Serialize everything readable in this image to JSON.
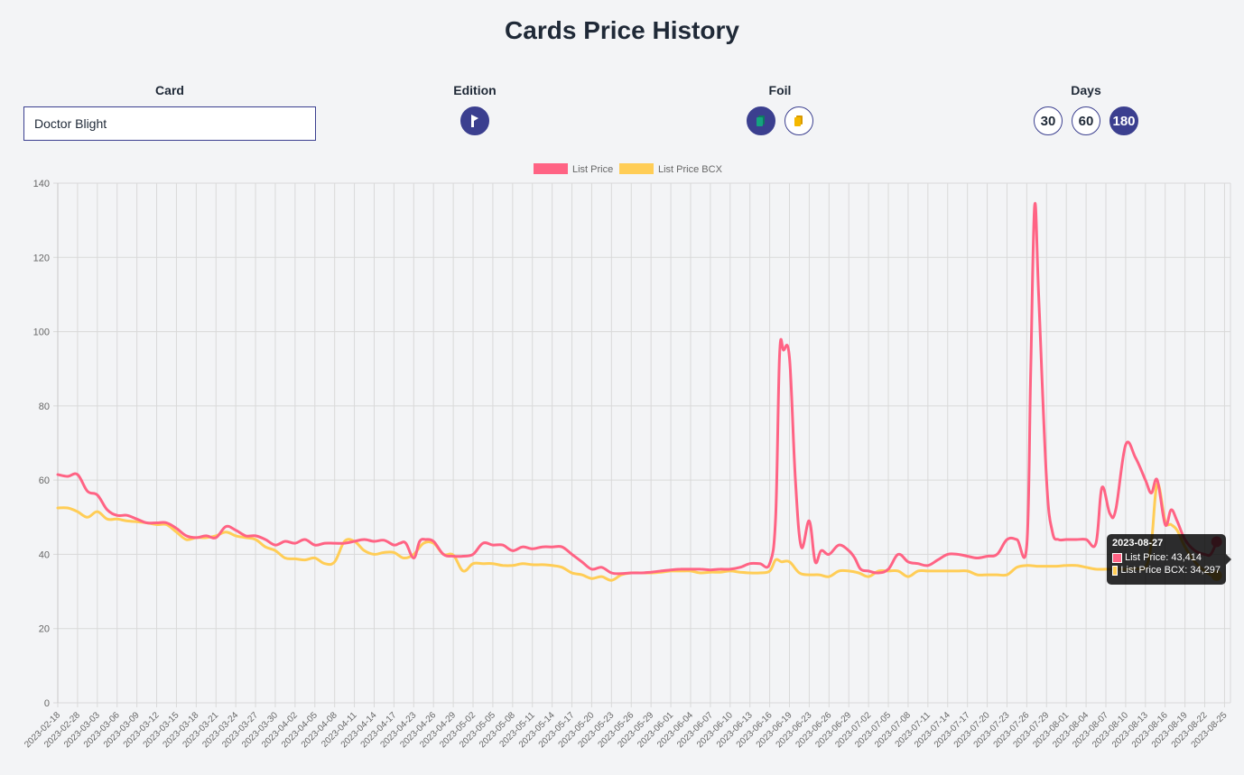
{
  "page": {
    "title": "Cards Price History"
  },
  "controls": {
    "card": {
      "label": "Card",
      "value": "Doctor Blight"
    },
    "edition": {
      "label": "Edition",
      "icon": "edition-flag-icon"
    },
    "foil": {
      "label": "Foil",
      "options": [
        {
          "icon": "regular-card-icon",
          "color": "#14a37f",
          "active": true
        },
        {
          "icon": "gold-card-icon",
          "color": "#f5b800",
          "active": false
        }
      ]
    },
    "days": {
      "label": "Days",
      "options": [
        "30",
        "60",
        "180"
      ],
      "selected": "180"
    }
  },
  "tooltip": {
    "title": "2023-08-27",
    "rows": [
      {
        "label": "List Price: 43,414",
        "color": "#ff6384"
      },
      {
        "label": "List Price BCX: 34,297",
        "color": "#ffcd56"
      }
    ]
  },
  "chart_data": {
    "type": "line",
    "title": "",
    "xlabel": "",
    "ylabel": "",
    "ylim": [
      0,
      140
    ],
    "yticks": [
      0,
      20,
      40,
      60,
      80,
      100,
      120,
      140
    ],
    "grid": true,
    "legend_position": "top",
    "x": [
      "2023-02-18",
      "2023-02-28",
      "2023-03-03",
      "2023-03-06",
      "2023-03-09",
      "2023-03-12",
      "2023-03-15",
      "2023-03-18",
      "2023-03-21",
      "2023-03-24",
      "2023-03-27",
      "2023-03-30",
      "2023-04-02",
      "2023-04-05",
      "2023-04-08",
      "2023-04-11",
      "2023-04-14",
      "2023-04-17",
      "2023-04-23",
      "2023-04-26",
      "2023-04-29",
      "2023-05-02",
      "2023-05-05",
      "2023-05-08",
      "2023-05-11",
      "2023-05-14",
      "2023-05-17",
      "2023-05-20",
      "2023-05-23",
      "2023-05-26",
      "2023-05-29",
      "2023-06-01",
      "2023-06-04",
      "2023-06-07",
      "2023-06-10",
      "2023-06-13",
      "2023-06-16",
      "2023-06-19",
      "2023-06-23",
      "2023-06-26",
      "2023-06-29",
      "2023-07-02",
      "2023-07-05",
      "2023-07-08",
      "2023-07-11",
      "2023-07-14",
      "2023-07-17",
      "2023-07-20",
      "2023-07-23",
      "2023-07-26",
      "2023-07-29",
      "2023-08-01",
      "2023-08-04",
      "2023-08-07",
      "2023-08-10",
      "2023-08-13",
      "2023-08-16",
      "2023-08-19",
      "2023-08-22",
      "2023-08-25"
    ],
    "series": [
      {
        "name": "List Price",
        "color": "#ff6384",
        "points": [
          [
            0,
            61.5
          ],
          [
            0.5,
            61
          ],
          [
            1,
            61.5
          ],
          [
            1.5,
            57
          ],
          [
            2,
            56
          ],
          [
            2.5,
            52
          ],
          [
            3,
            50.5
          ],
          [
            3.5,
            50.5
          ],
          [
            4,
            49.5
          ],
          [
            4.5,
            48.5
          ],
          [
            5,
            48.5
          ],
          [
            5.5,
            48.5
          ],
          [
            6,
            47
          ],
          [
            6.5,
            45
          ],
          [
            7,
            44.5
          ],
          [
            7.5,
            45
          ],
          [
            8,
            44.5
          ],
          [
            8.5,
            47.5
          ],
          [
            9,
            46.5
          ],
          [
            9.5,
            45
          ],
          [
            10,
            45
          ],
          [
            10.5,
            44
          ],
          [
            11,
            42.5
          ],
          [
            11.5,
            43.5
          ],
          [
            12,
            43
          ],
          [
            12.5,
            44
          ],
          [
            13,
            42.5
          ],
          [
            13.5,
            43
          ],
          [
            14,
            43
          ],
          [
            14.5,
            43
          ],
          [
            15,
            43.5
          ],
          [
            15.5,
            44
          ],
          [
            16,
            43.5
          ],
          [
            16.5,
            43.8
          ],
          [
            17,
            42.5
          ],
          [
            17.3,
            43
          ],
          [
            17.6,
            43
          ],
          [
            18,
            39
          ],
          [
            18.3,
            43.5
          ],
          [
            18.6,
            44
          ],
          [
            19,
            43.5
          ],
          [
            19.5,
            40
          ],
          [
            20,
            39.5
          ],
          [
            20.5,
            39.5
          ],
          [
            21,
            40
          ],
          [
            21.5,
            43
          ],
          [
            22,
            42.5
          ],
          [
            22.5,
            42.5
          ],
          [
            23,
            41
          ],
          [
            23.5,
            42
          ],
          [
            24,
            41.5
          ],
          [
            24.5,
            42
          ],
          [
            25,
            42
          ],
          [
            25.5,
            42
          ],
          [
            26,
            40
          ],
          [
            26.5,
            38
          ],
          [
            27,
            36
          ],
          [
            27.5,
            36.5
          ],
          [
            28,
            35
          ],
          [
            28.5,
            34.8
          ],
          [
            29,
            35
          ],
          [
            29.5,
            35
          ],
          [
            30,
            35.2
          ],
          [
            30.5,
            35.5
          ],
          [
            31,
            35.8
          ],
          [
            31.5,
            36
          ],
          [
            32,
            36
          ],
          [
            32.5,
            36
          ],
          [
            33,
            35.8
          ],
          [
            33.5,
            36
          ],
          [
            34,
            36
          ],
          [
            34.5,
            36.5
          ],
          [
            35,
            37.5
          ],
          [
            35.5,
            37.5
          ],
          [
            36,
            37.5
          ],
          [
            36.3,
            50
          ],
          [
            36.5,
            94
          ],
          [
            36.7,
            95
          ],
          [
            37,
            93
          ],
          [
            37.3,
            60
          ],
          [
            37.6,
            42
          ],
          [
            38,
            49
          ],
          [
            38.3,
            38
          ],
          [
            38.6,
            41
          ],
          [
            39,
            40
          ],
          [
            39.5,
            42.5
          ],
          [
            40,
            41
          ],
          [
            40.3,
            39
          ],
          [
            40.6,
            36
          ],
          [
            41,
            35.5
          ],
          [
            41.5,
            35
          ],
          [
            42,
            36
          ],
          [
            42.5,
            40
          ],
          [
            43,
            38
          ],
          [
            43.5,
            37.5
          ],
          [
            44,
            37
          ],
          [
            44.5,
            38.5
          ],
          [
            45,
            40
          ],
          [
            45.5,
            40
          ],
          [
            46,
            39.5
          ],
          [
            46.5,
            39
          ],
          [
            47,
            39.5
          ],
          [
            47.5,
            40
          ],
          [
            48,
            44
          ],
          [
            48.5,
            44
          ],
          [
            49,
            42.5
          ],
          [
            49.2,
            90
          ],
          [
            49.4,
            134
          ],
          [
            49.6,
            110
          ],
          [
            50,
            60
          ],
          [
            50.3,
            46
          ],
          [
            50.6,
            44
          ],
          [
            51,
            44
          ],
          [
            51.5,
            44
          ],
          [
            52,
            44
          ],
          [
            52.5,
            43
          ],
          [
            52.8,
            58
          ],
          [
            53.2,
            51
          ],
          [
            53.5,
            52
          ],
          [
            54,
            69.5
          ],
          [
            54.5,
            66
          ],
          [
            55,
            60
          ],
          [
            55.3,
            56.5
          ],
          [
            55.6,
            60
          ],
          [
            56,
            48
          ],
          [
            56.3,
            52
          ],
          [
            56.6,
            49
          ],
          [
            57,
            44
          ],
          [
            57.5,
            41
          ],
          [
            58,
            40
          ],
          [
            58.3,
            40
          ],
          [
            58.6,
            43.4
          ]
        ]
      },
      {
        "name": "List Price BCX",
        "color": "#ffcd56",
        "points": [
          [
            0,
            52.5
          ],
          [
            0.5,
            52.5
          ],
          [
            1,
            51.5
          ],
          [
            1.5,
            50
          ],
          [
            2,
            51.5
          ],
          [
            2.5,
            49.5
          ],
          [
            3,
            49.5
          ],
          [
            3.5,
            49
          ],
          [
            4,
            48.8
          ],
          [
            4.5,
            48.5
          ],
          [
            5,
            48
          ],
          [
            5.5,
            48
          ],
          [
            6,
            46
          ],
          [
            6.5,
            44
          ],
          [
            7,
            44.5
          ],
          [
            7.5,
            44.5
          ],
          [
            8,
            45
          ],
          [
            8.5,
            46
          ],
          [
            9,
            45
          ],
          [
            9.5,
            44.5
          ],
          [
            10,
            44
          ],
          [
            10.5,
            42
          ],
          [
            11,
            41
          ],
          [
            11.5,
            39
          ],
          [
            12,
            38.8
          ],
          [
            12.5,
            38.5
          ],
          [
            13,
            39
          ],
          [
            13.5,
            37.5
          ],
          [
            14,
            38
          ],
          [
            14.5,
            43.5
          ],
          [
            15,
            43.5
          ],
          [
            15.5,
            41
          ],
          [
            16,
            40
          ],
          [
            16.5,
            40.5
          ],
          [
            17,
            40.5
          ],
          [
            17.5,
            39
          ],
          [
            18,
            40
          ],
          [
            18.5,
            43
          ],
          [
            19,
            43
          ],
          [
            19.5,
            40
          ],
          [
            20,
            39.8
          ],
          [
            20.5,
            35.5
          ],
          [
            21,
            37.5
          ],
          [
            21.5,
            37.5
          ],
          [
            22,
            37.5
          ],
          [
            22.5,
            37
          ],
          [
            23,
            37
          ],
          [
            23.5,
            37.5
          ],
          [
            24,
            37.2
          ],
          [
            24.5,
            37.2
          ],
          [
            25,
            37
          ],
          [
            25.5,
            36.5
          ],
          [
            26,
            35
          ],
          [
            26.5,
            34.5
          ],
          [
            27,
            33.5
          ],
          [
            27.5,
            34
          ],
          [
            28,
            33
          ],
          [
            28.5,
            34.5
          ],
          [
            29,
            35
          ],
          [
            29.5,
            35
          ],
          [
            30,
            35
          ],
          [
            30.5,
            35.2
          ],
          [
            31,
            35.5
          ],
          [
            31.5,
            35.5
          ],
          [
            32,
            35.5
          ],
          [
            32.5,
            35
          ],
          [
            33,
            35.2
          ],
          [
            33.5,
            35.2
          ],
          [
            34,
            35.5
          ],
          [
            34.5,
            35.2
          ],
          [
            35,
            35
          ],
          [
            35.5,
            35
          ],
          [
            36,
            35.5
          ],
          [
            36.3,
            38.5
          ],
          [
            36.6,
            38
          ],
          [
            37,
            38
          ],
          [
            37.5,
            35
          ],
          [
            38,
            34.5
          ],
          [
            38.5,
            34.5
          ],
          [
            39,
            34
          ],
          [
            39.5,
            35.5
          ],
          [
            40,
            35.5
          ],
          [
            40.5,
            35
          ],
          [
            41,
            34
          ],
          [
            41.5,
            35.5
          ],
          [
            42,
            35.5
          ],
          [
            42.5,
            35.5
          ],
          [
            43,
            34
          ],
          [
            43.5,
            35.5
          ],
          [
            44,
            35.5
          ],
          [
            44.5,
            35.5
          ],
          [
            45,
            35.5
          ],
          [
            45.5,
            35.5
          ],
          [
            46,
            35.5
          ],
          [
            46.5,
            34.5
          ],
          [
            47,
            34.5
          ],
          [
            47.5,
            34.5
          ],
          [
            48,
            34.5
          ],
          [
            48.5,
            36.5
          ],
          [
            49,
            37
          ],
          [
            49.5,
            36.8
          ],
          [
            50,
            36.8
          ],
          [
            50.5,
            36.8
          ],
          [
            51,
            37
          ],
          [
            51.5,
            37
          ],
          [
            52,
            36.5
          ],
          [
            52.5,
            36
          ],
          [
            53,
            36
          ],
          [
            53.5,
            36
          ],
          [
            54,
            36
          ],
          [
            54.5,
            36.2
          ],
          [
            55,
            36.5
          ],
          [
            55.3,
            43
          ],
          [
            55.6,
            59
          ],
          [
            56,
            49
          ],
          [
            56.3,
            48
          ],
          [
            56.6,
            46.5
          ],
          [
            57,
            42
          ],
          [
            57.5,
            38
          ],
          [
            58,
            35.5
          ],
          [
            58.3,
            34.5
          ],
          [
            58.6,
            34.3
          ]
        ]
      }
    ]
  }
}
